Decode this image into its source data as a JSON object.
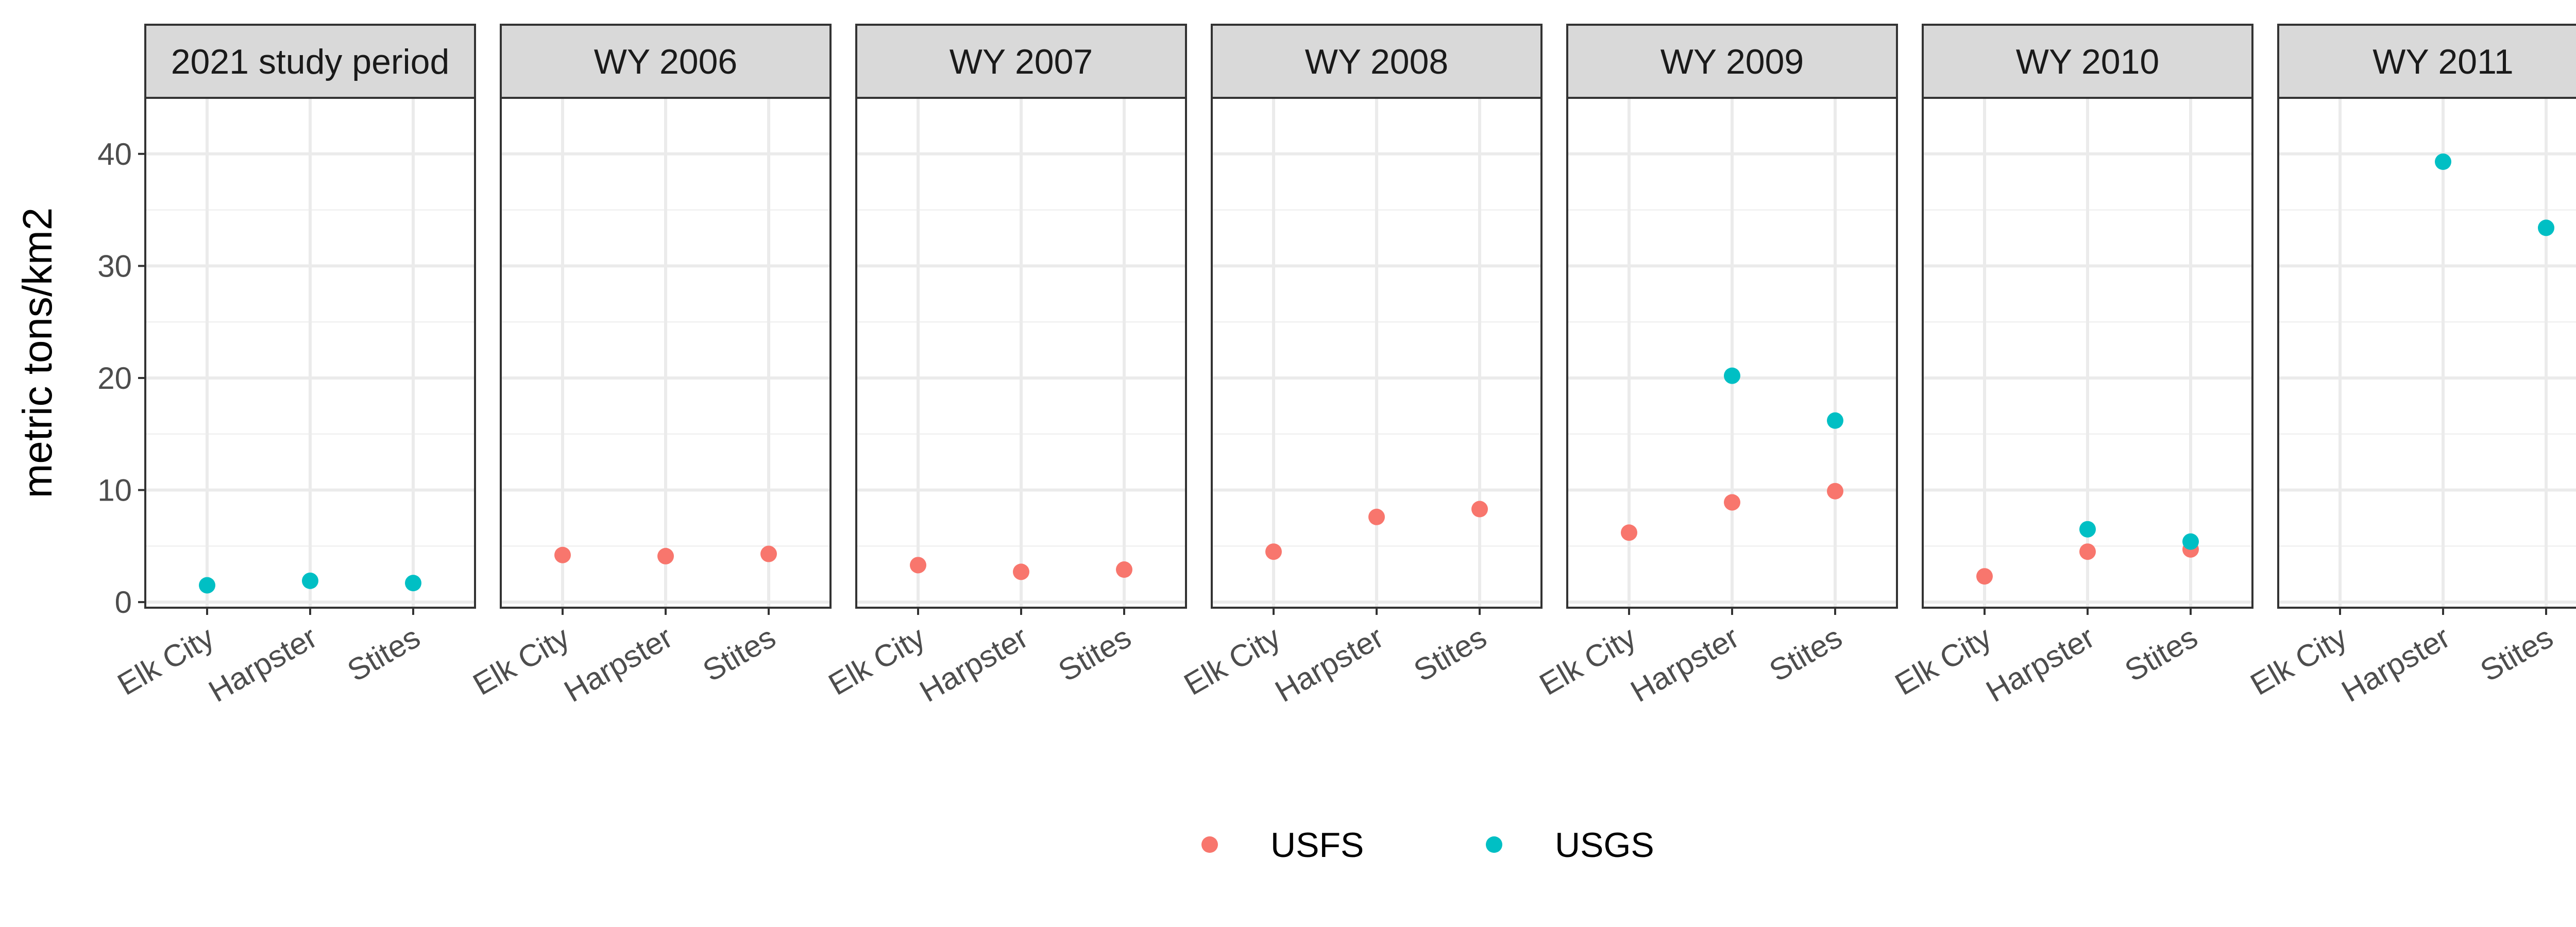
{
  "chart_data": {
    "type": "scatter",
    "ylabel": "metric tons/km2",
    "xlabel": "",
    "ylim": [
      -0.5,
      45
    ],
    "yticks": [
      0,
      10,
      20,
      30,
      40
    ],
    "categories": [
      "Elk City",
      "Harpster",
      "Stites"
    ],
    "grid": true,
    "legend_position": "bottom",
    "series": [
      {
        "name": "USFS",
        "color": "#F8766D"
      },
      {
        "name": "USGS",
        "color": "#00BFC4"
      }
    ],
    "panels": [
      {
        "title": "2021 study period",
        "points": [
          {
            "x": "Elk City",
            "y": 1.5,
            "series": "USGS"
          },
          {
            "x": "Harpster",
            "y": 1.9,
            "series": "USGS"
          },
          {
            "x": "Stites",
            "y": 1.7,
            "series": "USGS"
          }
        ]
      },
      {
        "title": "WY 2006",
        "points": [
          {
            "x": "Elk City",
            "y": 4.2,
            "series": "USFS"
          },
          {
            "x": "Harpster",
            "y": 4.1,
            "series": "USFS"
          },
          {
            "x": "Stites",
            "y": 4.3,
            "series": "USFS"
          }
        ]
      },
      {
        "title": "WY 2007",
        "points": [
          {
            "x": "Elk City",
            "y": 3.3,
            "series": "USFS"
          },
          {
            "x": "Harpster",
            "y": 2.7,
            "series": "USFS"
          },
          {
            "x": "Stites",
            "y": 2.9,
            "series": "USFS"
          }
        ]
      },
      {
        "title": "WY 2008",
        "points": [
          {
            "x": "Elk City",
            "y": 4.5,
            "series": "USFS"
          },
          {
            "x": "Harpster",
            "y": 7.6,
            "series": "USFS"
          },
          {
            "x": "Stites",
            "y": 8.3,
            "series": "USFS"
          }
        ]
      },
      {
        "title": "WY 2009",
        "points": [
          {
            "x": "Elk City",
            "y": 6.2,
            "series": "USFS"
          },
          {
            "x": "Harpster",
            "y": 8.9,
            "series": "USFS"
          },
          {
            "x": "Stites",
            "y": 9.9,
            "series": "USFS"
          },
          {
            "x": "Harpster",
            "y": 20.2,
            "series": "USGS"
          },
          {
            "x": "Stites",
            "y": 16.2,
            "series": "USGS"
          }
        ]
      },
      {
        "title": "WY 2010",
        "points": [
          {
            "x": "Elk City",
            "y": 2.3,
            "series": "USFS"
          },
          {
            "x": "Harpster",
            "y": 4.5,
            "series": "USFS"
          },
          {
            "x": "Stites",
            "y": 4.7,
            "series": "USFS"
          },
          {
            "x": "Harpster",
            "y": 6.5,
            "series": "USGS"
          },
          {
            "x": "Stites",
            "y": 5.4,
            "series": "USGS"
          }
        ]
      },
      {
        "title": "WY 2011",
        "points": [
          {
            "x": "Harpster",
            "y": 39.3,
            "series": "USGS"
          },
          {
            "x": "Stites",
            "y": 33.4,
            "series": "USGS"
          }
        ]
      }
    ]
  }
}
